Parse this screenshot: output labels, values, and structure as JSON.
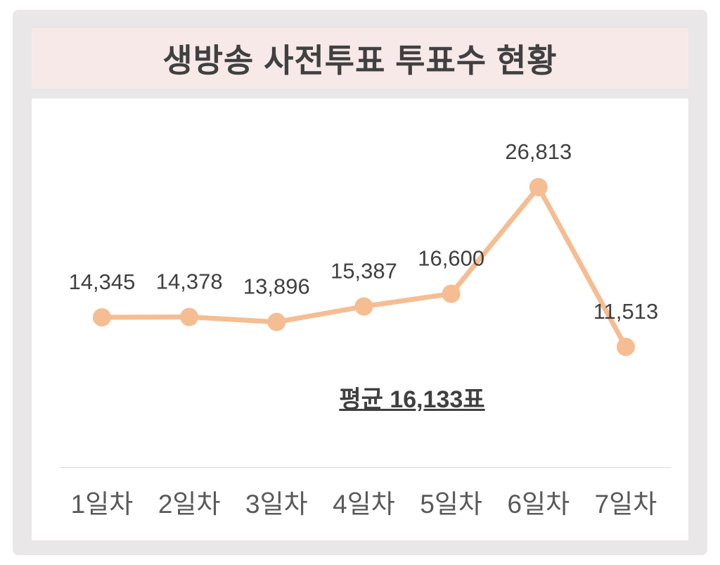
{
  "chart_data": {
    "type": "line",
    "title": "생방송 사전투표 투표수 현황",
    "categories": [
      "1일차",
      "2일차",
      "3일차",
      "4일차",
      "5일차",
      "6일차",
      "7일차"
    ],
    "values": [
      14345,
      14378,
      13896,
      15387,
      16600,
      26813,
      11513
    ],
    "value_labels": [
      "14,345",
      "14,378",
      "13,896",
      "15,387",
      "16,600",
      "26,813",
      "11,513"
    ],
    "average_label": "평균 16,133표",
    "average_value": 16133,
    "ylim": [
      11513,
      26813
    ],
    "grid": false,
    "legend": "none",
    "colors": {
      "line": "#f5bd92",
      "marker": "#f5bd92",
      "panel_bg": "#e9e7e7",
      "title_bar_bg": "#f8e9e9",
      "chart_bg": "#ffffff",
      "title_text": "#404040",
      "value_label_text": "#404040",
      "average_text": "#3f3f3f",
      "axis_label_text": "#595959",
      "axis_line": "#d9d9d9"
    }
  }
}
